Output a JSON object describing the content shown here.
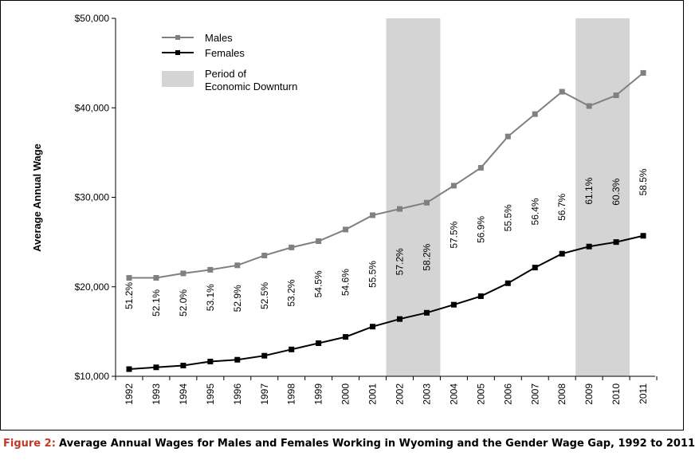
{
  "caption": {
    "figure_label": "Figure 2:",
    "title": "Average Annual Wages for Males and Females Working in Wyoming and the Gender Wage Gap, 1992 to 2011"
  },
  "chart_data": {
    "type": "line",
    "ylabel": "Average Annual Wage",
    "xlabel": "",
    "ylim": [
      10000,
      50000
    ],
    "y_ticks": [
      10000,
      20000,
      30000,
      40000,
      50000
    ],
    "y_tick_labels": [
      "$10,000",
      "$20,000",
      "$30,000",
      "$40,000",
      "$50,000"
    ],
    "x": [
      "1992",
      "1993",
      "1994",
      "1995",
      "1996",
      "1997",
      "1998",
      "1999",
      "2000",
      "2001",
      "2002",
      "2003",
      "2004",
      "2005",
      "2006",
      "2007",
      "2008",
      "2009",
      "2010",
      "2011"
    ],
    "series": [
      {
        "name": "Males",
        "color": "#808080",
        "marker": "square",
        "values": [
          21000,
          21000,
          21500,
          21900,
          22400,
          23500,
          24400,
          25100,
          26400,
          28000,
          28700,
          29400,
          31300,
          33300,
          36800,
          39300,
          41800,
          40200,
          41400,
          43900
        ]
      },
      {
        "name": "Females",
        "color": "#000000",
        "marker": "square",
        "values": [
          10800,
          11000,
          11200,
          11650,
          11850,
          12300,
          13000,
          13700,
          14400,
          15550,
          16400,
          17100,
          18000,
          18950,
          20400,
          22150,
          23700,
          24500,
          25000,
          25700
        ]
      }
    ],
    "downturn_periods": [
      {
        "start": "2002",
        "end": "2003"
      },
      {
        "start": "2009",
        "end": "2010"
      }
    ],
    "downturn_label": "Period of Economic Downturn",
    "downturn_label_lines": [
      "Period of",
      "Economic Downturn"
    ],
    "downturn_color": "#d4d4d4",
    "gap_labels": [
      "51.2%",
      "52.1%",
      "52.0%",
      "53.1%",
      "52.9%",
      "52.5%",
      "53.2%",
      "54.5%",
      "54.6%",
      "55.5%",
      "57.2%",
      "58.2%",
      "57.5%",
      "56.9%",
      "55.5%",
      "56.4%",
      "56.7%",
      "61.1%",
      "60.3%",
      "58.5%"
    ],
    "gap_label_values": [
      19000,
      18200,
      18200,
      18800,
      18700,
      19000,
      19300,
      20300,
      20500,
      21400,
      22800,
      23300,
      25800,
      26400,
      27700,
      28400,
      28900,
      30700,
      30600,
      31700
    ],
    "legend_position": "top-left",
    "grid": false
  }
}
